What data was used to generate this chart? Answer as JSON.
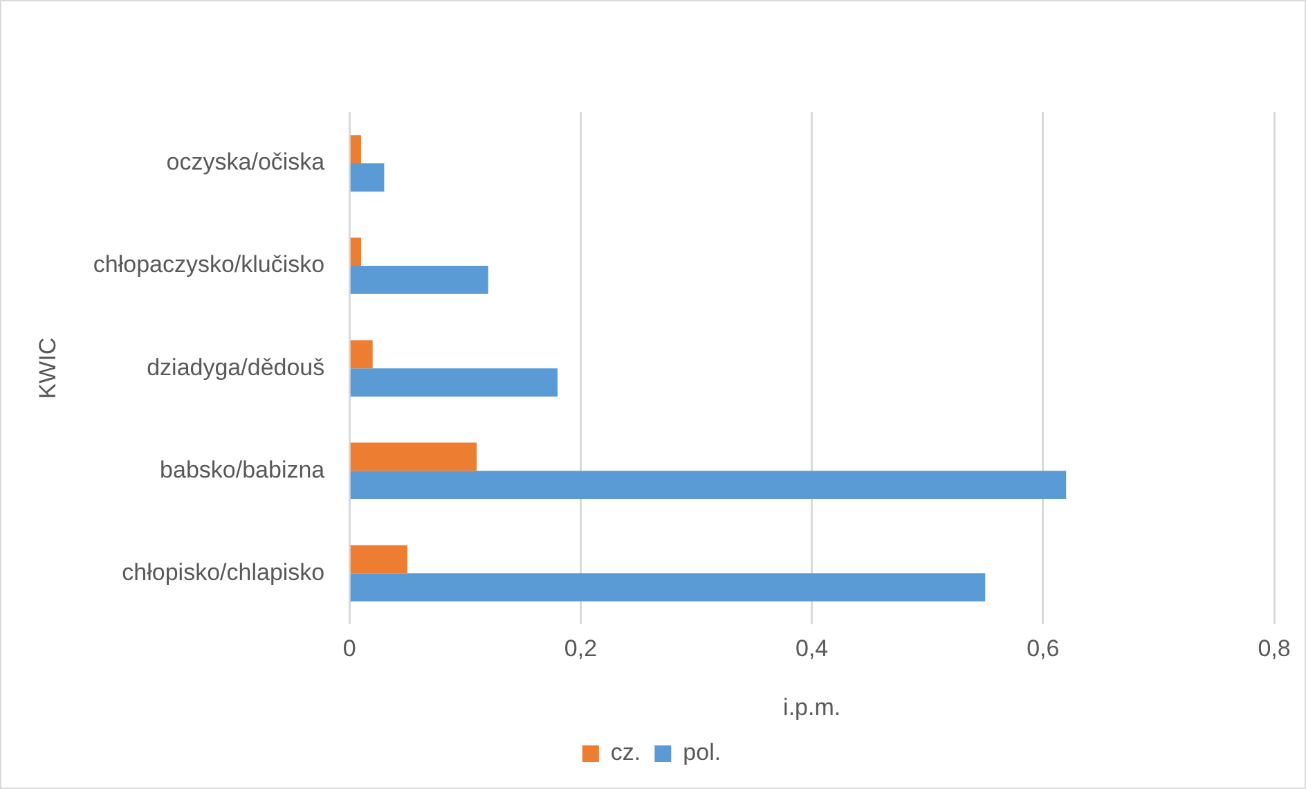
{
  "chart_data": {
    "type": "bar",
    "orientation": "horizontal",
    "xlabel": "i.p.m.",
    "ylabel": "KWIC",
    "categories": [
      "oczyska/očiska",
      "chłopaczysko/klučisko",
      "dziadyga/dědouš",
      "babsko/babizna",
      "chłopisko/chlapisko"
    ],
    "series": [
      {
        "name": "cz.",
        "color": "#ed7d31",
        "values": [
          0.01,
          0.01,
          0.02,
          0.11,
          0.05
        ]
      },
      {
        "name": "pol.",
        "color": "#5b9bd5",
        "values": [
          0.03,
          0.12,
          0.18,
          0.62,
          0.55
        ]
      }
    ],
    "xlim": [
      0,
      0.8
    ],
    "xticks": [
      0,
      {
        "value": 0.2,
        "label": "0,2"
      },
      {
        "value": 0.4,
        "label": "0,4"
      },
      {
        "value": 0.6,
        "label": "0,6"
      },
      {
        "value": 0.8,
        "label": "0,8"
      }
    ],
    "grid": "x",
    "legend": "bottom"
  }
}
